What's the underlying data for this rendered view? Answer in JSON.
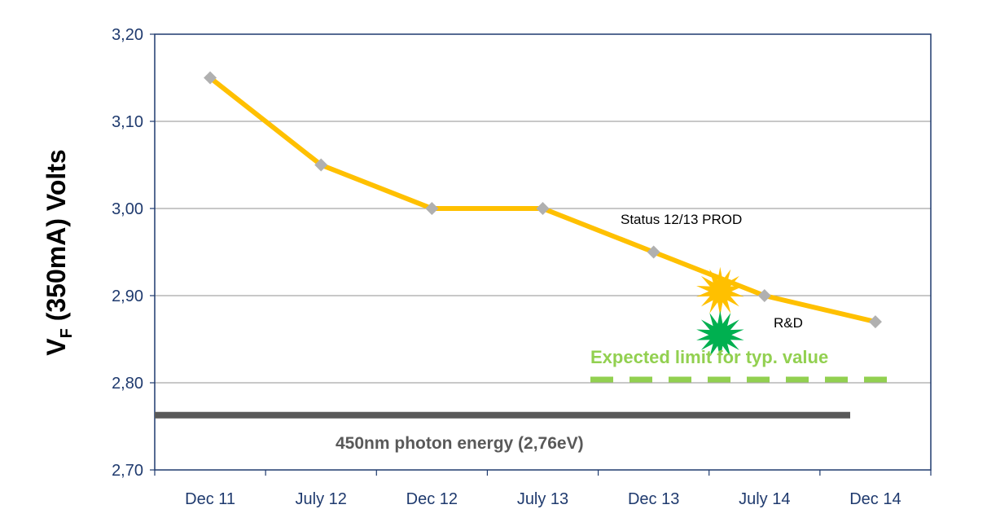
{
  "chart_data": {
    "type": "line",
    "categories": [
      "Dec 11",
      "July 12",
      "Dec 12",
      "July 13",
      "Dec 13",
      "July 14",
      "Dec 14"
    ],
    "series": [
      {
        "values": [
          3.15,
          3.05,
          3.0,
          3.0,
          2.95,
          2.9,
          2.87
        ],
        "color": "#FFC000"
      }
    ],
    "title": "",
    "ylabel_main": "V",
    "ylabel_sub": "F",
    "ylabel_rest": " (350mA) Volts",
    "xlabel": "",
    "ylim": [
      2.7,
      3.2
    ],
    "y_ticks": [
      {
        "value": 3.2,
        "label": "3,20"
      },
      {
        "value": 3.1,
        "label": "3,10"
      },
      {
        "value": 3.0,
        "label": "3,00"
      },
      {
        "value": 2.9,
        "label": "2,90"
      },
      {
        "value": 2.8,
        "label": "2,80"
      },
      {
        "value": 2.7,
        "label": "2,70"
      }
    ],
    "grid": true,
    "annotations": {
      "status_label": "Status 12/13 PROD",
      "rd_label": "R&D",
      "expected_limit_label": "Expected limit for typ. value",
      "expected_limit_value": 2.8,
      "photon_label": "450nm photon energy (2,76eV)",
      "photon_value": 2.76,
      "status_marker": {
        "x": 4.6,
        "y": 2.905
      },
      "rd_marker": {
        "x": 4.6,
        "y": 2.855
      }
    },
    "colors": {
      "line": "#FFC000",
      "marker": "#B0B0B0",
      "status_star": "#FFC000",
      "rd_star": "#00B050",
      "expected_limit": "#92D050",
      "photon_line": "#595959",
      "axis_text": "#1f3a6e",
      "plot_border": "#1f3a6e",
      "grid": "#a6a6a6"
    }
  }
}
